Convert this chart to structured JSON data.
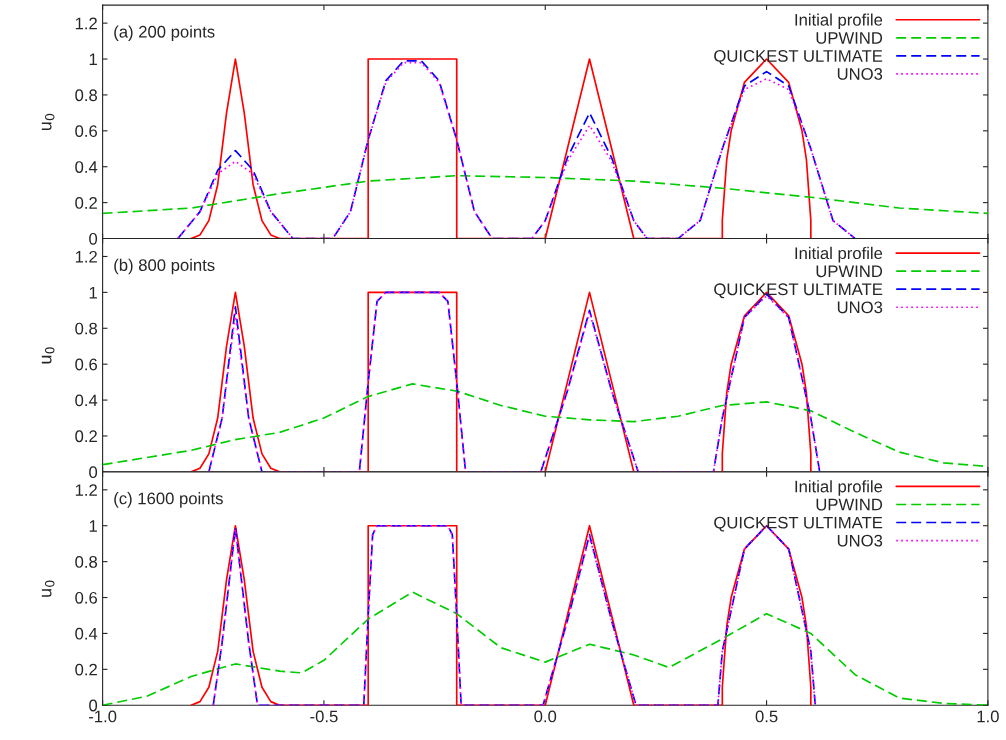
{
  "chart_data": [
    {
      "type": "line",
      "annotations": [
        "(a) 200 points"
      ],
      "ylabel": "u$_{0}$",
      "xlim": [
        -1,
        1
      ],
      "ylim": [
        0,
        1.3
      ],
      "xticks": [
        -1,
        -0.5,
        0,
        0.5,
        1
      ],
      "yticks": [
        0,
        0.2,
        0.4,
        0.6,
        0.8,
        1,
        1.2
      ],
      "tick_labels": "y",
      "grid": false,
      "legend": "top right",
      "marker": "none",
      "series": [
        {
          "name": "Initial profile",
          "color": "#ff0000",
          "line_style": "solid",
          "x": [
            -0.8,
            -0.78,
            -0.76,
            -0.74,
            -0.72,
            -0.7,
            -0.68,
            -0.66,
            -0.64,
            -0.62,
            -0.6,
            -0.4,
            -0.4,
            -0.2,
            -0.2,
            0,
            0.05,
            0.1,
            0.15,
            0.2,
            0.4,
            0.4,
            0.41,
            0.42,
            0.45,
            0.5,
            0.55,
            0.58,
            0.59,
            0.6,
            0.6
          ],
          "values": [
            0,
            0.02,
            0.1,
            0.3,
            0.7,
            1,
            0.7,
            0.3,
            0.1,
            0.02,
            0,
            0,
            1,
            1,
            0,
            0,
            0.5,
            1,
            0.5,
            0,
            0,
            0.1,
            0.44,
            0.6,
            0.87,
            1,
            0.87,
            0.6,
            0.44,
            0.1,
            0
          ]
        },
        {
          "name": "UPWIND",
          "color": "#00cc00",
          "line_style": "dashed",
          "x": [
            -1,
            -0.8,
            -0.6,
            -0.4,
            -0.2,
            0,
            0.2,
            0.4,
            0.6,
            0.8,
            1
          ],
          "values": [
            0.14,
            0.17,
            0.25,
            0.32,
            0.35,
            0.34,
            0.32,
            0.28,
            0.23,
            0.17,
            0.14
          ]
        },
        {
          "name": "QUICKEST ULTIMATE",
          "color": "#0000ff",
          "line_style": "dashed",
          "x": [
            -0.83,
            -0.78,
            -0.74,
            -0.7,
            -0.66,
            -0.62,
            -0.57,
            -0.48,
            -0.44,
            -0.4,
            -0.36,
            -0.32,
            -0.28,
            -0.24,
            -0.2,
            -0.16,
            -0.12,
            -0.03,
            0,
            0.05,
            0.1,
            0.15,
            0.2,
            0.23,
            0.3,
            0.35,
            0.4,
            0.45,
            0.5,
            0.55,
            0.6,
            0.65,
            0.7
          ],
          "values": [
            0,
            0.15,
            0.38,
            0.49,
            0.38,
            0.15,
            0,
            0,
            0.15,
            0.55,
            0.88,
            0.99,
            0.99,
            0.88,
            0.55,
            0.15,
            0,
            0,
            0.1,
            0.45,
            0.7,
            0.45,
            0.1,
            0,
            0,
            0.1,
            0.5,
            0.85,
            0.93,
            0.85,
            0.5,
            0.1,
            0
          ]
        },
        {
          "name": "UNO3",
          "color": "#ff00ff",
          "line_style": "dotted",
          "x": [
            -0.83,
            -0.78,
            -0.74,
            -0.7,
            -0.66,
            -0.62,
            -0.57,
            -0.48,
            -0.44,
            -0.4,
            -0.36,
            -0.32,
            -0.28,
            -0.24,
            -0.2,
            -0.16,
            -0.12,
            -0.03,
            0,
            0.05,
            0.1,
            0.15,
            0.2,
            0.23,
            0.3,
            0.35,
            0.4,
            0.45,
            0.5,
            0.55,
            0.6,
            0.65,
            0.7
          ],
          "values": [
            0,
            0.15,
            0.36,
            0.43,
            0.36,
            0.15,
            0,
            0,
            0.15,
            0.55,
            0.87,
            0.98,
            0.98,
            0.87,
            0.55,
            0.15,
            0,
            0,
            0.1,
            0.43,
            0.63,
            0.43,
            0.1,
            0,
            0,
            0.1,
            0.5,
            0.83,
            0.89,
            0.83,
            0.5,
            0.1,
            0
          ]
        }
      ]
    },
    {
      "type": "line",
      "annotations": [
        "(b) 800 points"
      ],
      "ylabel": "u$_{0}$",
      "xlim": [
        -1,
        1
      ],
      "ylim": [
        0,
        1.3
      ],
      "xticks": [
        -1,
        -0.5,
        0,
        0.5,
        1
      ],
      "yticks": [
        0,
        0.2,
        0.4,
        0.6,
        0.8,
        1,
        1.2
      ],
      "tick_labels": "y",
      "grid": false,
      "legend": "top right",
      "marker": "none",
      "series": [
        {
          "name": "Initial profile",
          "color": "#ff0000",
          "line_style": "solid",
          "x": [
            -0.8,
            -0.78,
            -0.76,
            -0.74,
            -0.72,
            -0.7,
            -0.68,
            -0.66,
            -0.64,
            -0.62,
            -0.6,
            -0.4,
            -0.4,
            -0.2,
            -0.2,
            0,
            0.05,
            0.1,
            0.15,
            0.2,
            0.4,
            0.4,
            0.41,
            0.42,
            0.45,
            0.5,
            0.55,
            0.58,
            0.59,
            0.6,
            0.6
          ],
          "values": [
            0,
            0.02,
            0.1,
            0.3,
            0.7,
            1,
            0.7,
            0.3,
            0.1,
            0.02,
            0,
            0,
            1,
            1,
            0,
            0,
            0.5,
            1,
            0.5,
            0,
            0,
            0.1,
            0.44,
            0.6,
            0.87,
            1,
            0.87,
            0.6,
            0.44,
            0.1,
            0
          ]
        },
        {
          "name": "UPWIND",
          "color": "#00cc00",
          "line_style": "dashed",
          "x": [
            -1,
            -0.8,
            -0.7,
            -0.6,
            -0.5,
            -0.4,
            -0.3,
            -0.2,
            -0.1,
            0,
            0.1,
            0.2,
            0.3,
            0.4,
            0.5,
            0.6,
            0.7,
            0.8,
            0.9,
            1
          ],
          "values": [
            0.04,
            0.12,
            0.18,
            0.22,
            0.3,
            0.42,
            0.49,
            0.45,
            0.37,
            0.31,
            0.29,
            0.28,
            0.31,
            0.37,
            0.39,
            0.34,
            0.22,
            0.11,
            0.05,
            0.03
          ]
        },
        {
          "name": "QUICKEST ULTIMATE",
          "color": "#0000ff",
          "line_style": "dashed",
          "x": [
            -0.76,
            -0.73,
            -0.7,
            -0.67,
            -0.64,
            -0.42,
            -0.4,
            -0.38,
            -0.36,
            -0.24,
            -0.22,
            -0.2,
            -0.18,
            -0.01,
            0.05,
            0.1,
            0.15,
            0.21,
            0.38,
            0.4,
            0.45,
            0.5,
            0.55,
            0.6,
            0.62
          ],
          "values": [
            0,
            0.3,
            0.92,
            0.3,
            0,
            0,
            0.5,
            0.95,
            1,
            1,
            0.95,
            0.5,
            0,
            0,
            0.45,
            0.9,
            0.45,
            0,
            0,
            0.3,
            0.86,
            0.99,
            0.86,
            0.3,
            0
          ]
        },
        {
          "name": "UNO3",
          "color": "#ff00ff",
          "line_style": "dotted",
          "x": [
            -0.76,
            -0.73,
            -0.7,
            -0.67,
            -0.64,
            -0.42,
            -0.4,
            -0.38,
            -0.36,
            -0.24,
            -0.22,
            -0.2,
            -0.18,
            -0.01,
            0.05,
            0.1,
            0.15,
            0.21,
            0.38,
            0.4,
            0.45,
            0.5,
            0.55,
            0.6,
            0.62
          ],
          "values": [
            0,
            0.3,
            0.88,
            0.3,
            0,
            0,
            0.5,
            0.95,
            1,
            1,
            0.95,
            0.5,
            0,
            0,
            0.45,
            0.89,
            0.45,
            0,
            0,
            0.3,
            0.86,
            0.98,
            0.86,
            0.3,
            0
          ]
        }
      ]
    },
    {
      "type": "line",
      "annotations": [
        "(c) 1600 points"
      ],
      "ylabel": "u$_{0}$",
      "xlim": [
        -1,
        1
      ],
      "ylim": [
        0,
        1.3
      ],
      "xticks": [
        {
          "value": -1,
          "label": "-1.0"
        },
        {
          "value": -0.5,
          "label": "-0.5"
        },
        {
          "value": 0,
          "label": "0.0"
        },
        {
          "value": 0.5,
          "label": "0.5"
        },
        {
          "value": 1,
          "label": "1.0"
        }
      ],
      "yticks": [
        0,
        0.2,
        0.4,
        0.6,
        0.8,
        1,
        1.2
      ],
      "grid": false,
      "legend": "top right",
      "marker": "none",
      "series": [
        {
          "name": "Initial profile",
          "color": "#ff0000",
          "line_style": "solid",
          "x": [
            -0.8,
            -0.78,
            -0.76,
            -0.74,
            -0.72,
            -0.7,
            -0.68,
            -0.66,
            -0.64,
            -0.62,
            -0.6,
            -0.4,
            -0.4,
            -0.2,
            -0.2,
            0,
            0.05,
            0.1,
            0.15,
            0.2,
            0.4,
            0.4,
            0.41,
            0.42,
            0.45,
            0.5,
            0.55,
            0.58,
            0.59,
            0.6,
            0.6
          ],
          "values": [
            0,
            0.02,
            0.1,
            0.3,
            0.7,
            1,
            0.7,
            0.3,
            0.1,
            0.02,
            0,
            0,
            1,
            1,
            0,
            0,
            0.5,
            1,
            0.5,
            0,
            0,
            0.1,
            0.44,
            0.6,
            0.87,
            1,
            0.87,
            0.6,
            0.44,
            0.1,
            0
          ]
        },
        {
          "name": "UPWIND",
          "color": "#00cc00",
          "line_style": "dashed",
          "x": [
            -1,
            -0.9,
            -0.8,
            -0.7,
            -0.6,
            -0.55,
            -0.5,
            -0.4,
            -0.3,
            -0.2,
            -0.1,
            0,
            0.1,
            0.2,
            0.28,
            0.4,
            0.5,
            0.6,
            0.7,
            0.8,
            0.9,
            1
          ],
          "values": [
            0,
            0.05,
            0.16,
            0.23,
            0.19,
            0.18,
            0.25,
            0.48,
            0.63,
            0.51,
            0.32,
            0.24,
            0.34,
            0.28,
            0.21,
            0.37,
            0.51,
            0.4,
            0.17,
            0.04,
            0.01,
            0
          ]
        },
        {
          "name": "QUICKEST ULTIMATE",
          "color": "#0000ff",
          "line_style": "dashed",
          "x": [
            -0.75,
            -0.73,
            -0.7,
            -0.67,
            -0.65,
            -0.41,
            -0.4,
            -0.39,
            -0.38,
            -0.22,
            -0.21,
            -0.2,
            -0.19,
            -0.005,
            0.05,
            0.1,
            0.15,
            0.205,
            0.39,
            0.4,
            0.45,
            0.5,
            0.55,
            0.6,
            0.61
          ],
          "values": [
            0,
            0.35,
            0.99,
            0.35,
            0,
            0,
            0.5,
            0.95,
            1,
            1,
            0.95,
            0.5,
            0,
            0,
            0.47,
            0.95,
            0.47,
            0,
            0,
            0.3,
            0.87,
            1,
            0.87,
            0.3,
            0
          ]
        },
        {
          "name": "UNO3",
          "color": "#ff00ff",
          "line_style": "dotted",
          "x": [
            -0.75,
            -0.73,
            -0.7,
            -0.67,
            -0.65,
            -0.41,
            -0.4,
            -0.39,
            -0.38,
            -0.22,
            -0.21,
            -0.2,
            -0.19,
            -0.005,
            0.05,
            0.1,
            0.15,
            0.205,
            0.39,
            0.4,
            0.45,
            0.5,
            0.55,
            0.6,
            0.61
          ],
          "values": [
            0,
            0.35,
            0.98,
            0.35,
            0,
            0,
            0.5,
            0.95,
            1,
            1,
            0.95,
            0.5,
            0,
            0,
            0.47,
            0.94,
            0.47,
            0,
            0,
            0.3,
            0.87,
            1,
            0.87,
            0.3,
            0
          ]
        }
      ]
    }
  ]
}
